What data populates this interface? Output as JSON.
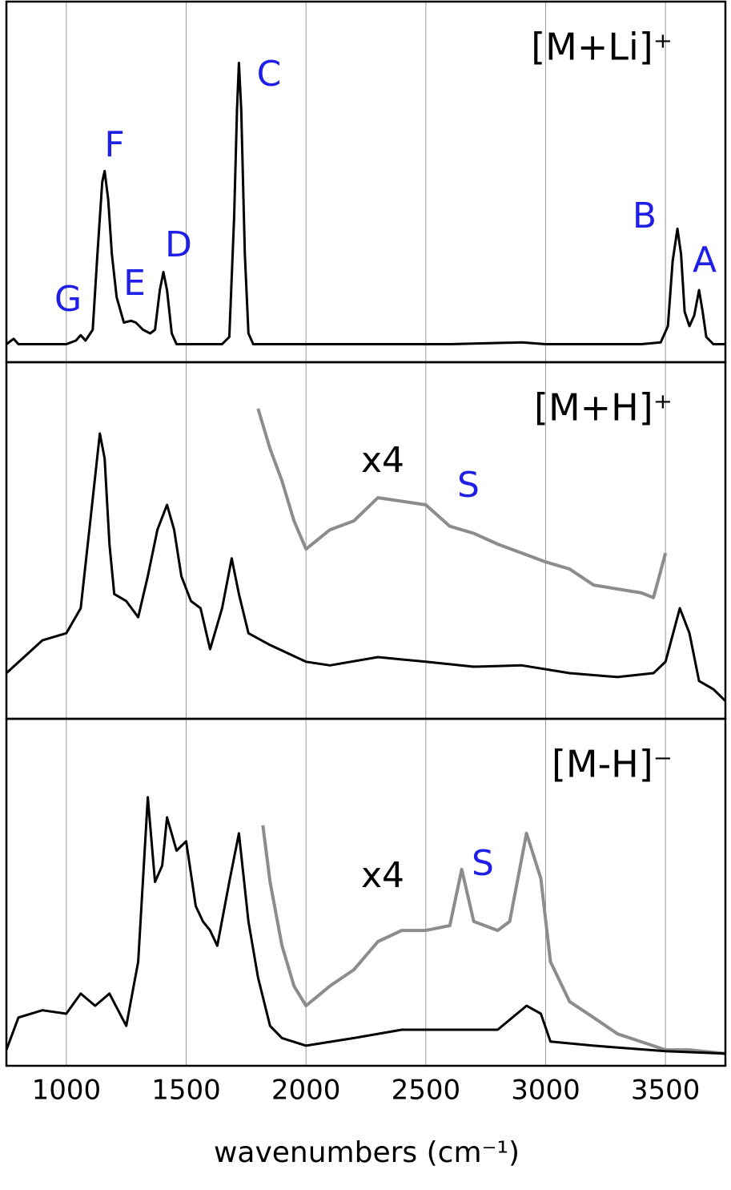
{
  "chart_data": [
    {
      "type": "line",
      "label": "[M+Li]⁺",
      "xlim": [
        750,
        3750
      ],
      "ylim": [
        0,
        100
      ],
      "xticks": [
        1000,
        1500,
        2000,
        2500,
        3000,
        3500
      ],
      "grid": true,
      "annotations": [
        {
          "text": "C",
          "color": "#1f1fe6"
        },
        {
          "text": "F",
          "color": "#1f1fe6"
        },
        {
          "text": "B",
          "color": "#1f1fe6"
        },
        {
          "text": "A",
          "color": "#1f1fe6"
        },
        {
          "text": "D",
          "color": "#1f1fe6"
        },
        {
          "text": "E",
          "color": "#1f1fe6"
        },
        {
          "text": "G",
          "color": "#1f1fe6"
        }
      ],
      "series": [
        {
          "color": "#000000",
          "x": [
            750,
            780,
            800,
            850,
            900,
            950,
            1000,
            1040,
            1060,
            1080,
            1110,
            1130,
            1150,
            1160,
            1175,
            1190,
            1210,
            1240,
            1270,
            1290,
            1320,
            1350,
            1370,
            1390,
            1405,
            1420,
            1440,
            1460,
            1500,
            1550,
            1600,
            1650,
            1680,
            1700,
            1712,
            1720,
            1730,
            1745,
            1760,
            1780,
            1850,
            2000,
            2200,
            2400,
            2600,
            2900,
            3000,
            3200,
            3400,
            3480,
            3510,
            3530,
            3550,
            3565,
            3580,
            3600,
            3620,
            3640,
            3655,
            3670,
            3700,
            3750
          ],
          "values": [
            5,
            6.5,
            5,
            5,
            5,
            5,
            5,
            6,
            7.5,
            6,
            9,
            30,
            50,
            53,
            45,
            30,
            18,
            11,
            11.5,
            11,
            9,
            8,
            9,
            20,
            25,
            20,
            8,
            5,
            5,
            5,
            5,
            5,
            7,
            40,
            70,
            83,
            70,
            30,
            8,
            5,
            5,
            5,
            5,
            5,
            5,
            5.5,
            5,
            5,
            5,
            5.5,
            10,
            28,
            37,
            30,
            14,
            10,
            13,
            20,
            14,
            7,
            5,
            5
          ]
        }
      ]
    },
    {
      "type": "line",
      "label": "[M+H]⁺",
      "xlim": [
        750,
        3750
      ],
      "ylim": [
        0,
        100
      ],
      "xticks": [
        1000,
        1500,
        2000,
        2500,
        3000,
        3500
      ],
      "grid": true,
      "annotations": [
        {
          "text": "x4",
          "color": "#000000"
        },
        {
          "text": "S",
          "color": "#1f1fe6"
        }
      ],
      "series": [
        {
          "color": "#000000",
          "x": [
            750,
            900,
            1000,
            1060,
            1100,
            1140,
            1160,
            1180,
            1200,
            1250,
            1300,
            1340,
            1380,
            1420,
            1450,
            1480,
            1520,
            1560,
            1600,
            1650,
            1690,
            1720,
            1760,
            1850,
            2000,
            2100,
            2300,
            2500,
            2700,
            2900,
            3100,
            3300,
            3450,
            3500,
            3560,
            3600,
            3640,
            3700,
            3750
          ],
          "values": [
            12.8,
            22,
            24,
            31,
            55.5,
            80,
            73,
            49,
            35,
            33,
            28.5,
            40,
            53,
            60,
            53,
            40,
            33,
            31,
            19.5,
            31,
            45,
            35,
            24,
            20.7,
            16,
            15,
            17.3,
            16,
            14.6,
            15,
            12.8,
            11.7,
            12.8,
            16,
            31,
            24,
            10.6,
            8.3,
            5
          ]
        },
        {
          "color": "#8c8c8c",
          "x": [
            1800,
            1850,
            1900,
            1950,
            2000,
            2100,
            2200,
            2300,
            2400,
            2500,
            2600,
            2700,
            2800,
            2900,
            3000,
            3100,
            3200,
            3300,
            3400,
            3450,
            3500
          ],
          "values": [
            87,
            75.7,
            66.7,
            55.5,
            47.6,
            53,
            55.5,
            62,
            61,
            60,
            54,
            52,
            49,
            46.5,
            44,
            42,
            37.5,
            36.4,
            35.3,
            34,
            46.5
          ]
        }
      ]
    },
    {
      "type": "line",
      "label": "[M-H]⁻",
      "xlim": [
        750,
        3750
      ],
      "ylim": [
        0,
        100
      ],
      "xticks": [
        1000,
        1500,
        2000,
        2500,
        3000,
        3500
      ],
      "grid": true,
      "x_label": "wavenumbers (cm⁻¹)",
      "annotations": [
        {
          "text": "x4",
          "color": "#000000"
        },
        {
          "text": "S",
          "color": "#1f1fe6"
        }
      ],
      "series": [
        {
          "color": "#000000",
          "x": [
            750,
            800,
            900,
            1000,
            1060,
            1120,
            1180,
            1250,
            1300,
            1340,
            1370,
            1400,
            1420,
            1460,
            1500,
            1540,
            1570,
            1600,
            1630,
            1680,
            1720,
            1760,
            1800,
            1850,
            1900,
            2000,
            2200,
            2400,
            2600,
            2800,
            2920,
            2980,
            3020,
            3200,
            3500,
            3750
          ],
          "values": [
            4.6,
            13.9,
            16,
            15,
            20.8,
            17.3,
            20.8,
            11.5,
            30,
            77.4,
            53,
            57.7,
            71.6,
            62,
            64.7,
            46,
            41.6,
            39,
            34.6,
            53,
            67,
            41.6,
            25.4,
            11.5,
            8,
            5.8,
            8,
            10.4,
            10.4,
            10.4,
            17.3,
            15,
            7,
            5.8,
            4.2,
            3.5
          ]
        },
        {
          "color": "#8c8c8c",
          "x": [
            1820,
            1850,
            1900,
            1950,
            2000,
            2100,
            2200,
            2300,
            2400,
            2500,
            2600,
            2650,
            2700,
            2800,
            2850,
            2920,
            2980,
            3020,
            3100,
            3200,
            3300,
            3400,
            3500,
            3600,
            3750
          ],
          "values": [
            69.3,
            53,
            34.6,
            23,
            17.3,
            23,
            27.7,
            35.8,
            39,
            39,
            40.4,
            56.6,
            41.6,
            39,
            41.6,
            67,
            54,
            30,
            18.5,
            13.9,
            9.2,
            6.9,
            4.6,
            4.6,
            3.5
          ]
        }
      ]
    }
  ]
}
